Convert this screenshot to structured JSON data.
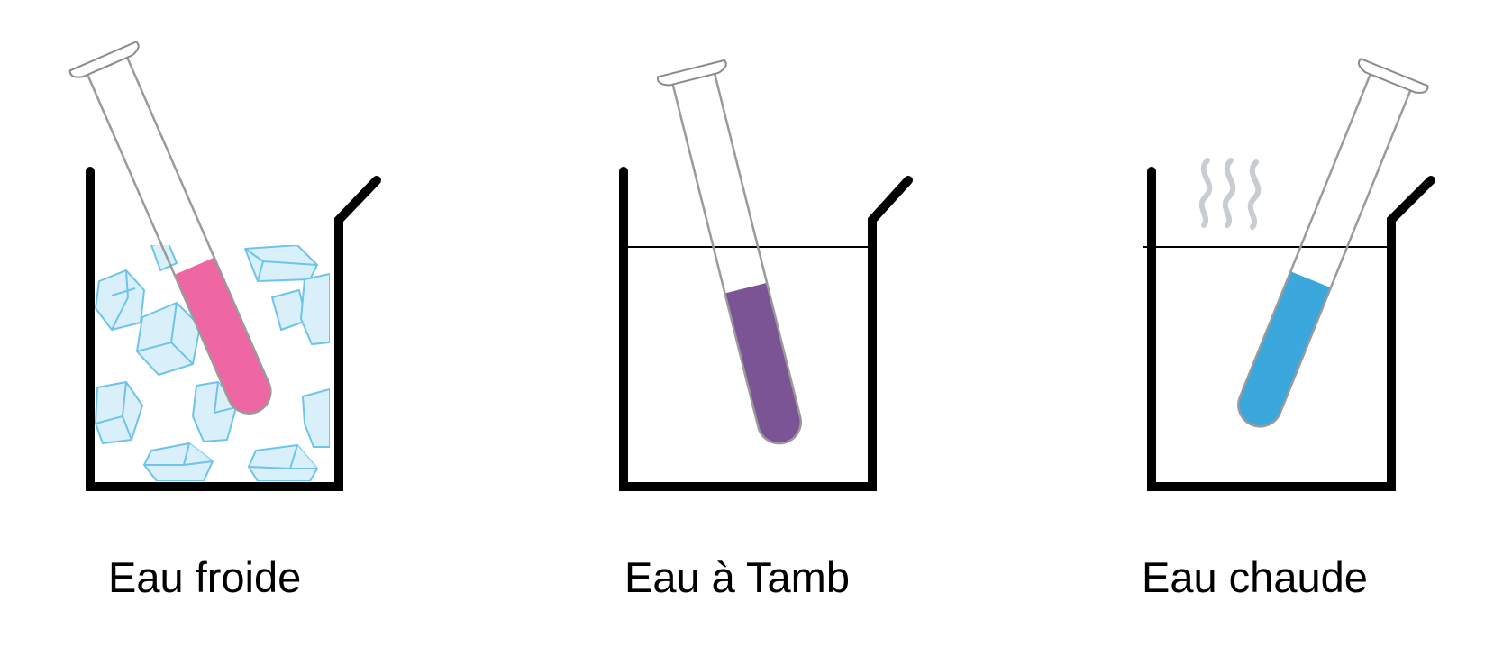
{
  "diagram": {
    "beakers": [
      {
        "label": "Eau froide",
        "condition": "cold water with ice cubes",
        "solution_color": "#EE67A2",
        "tube_icon": "test-tube-icon",
        "decoration_icon": "ice-cubes-icon"
      },
      {
        "label": "Eau à Tamb",
        "condition": "room temperature water",
        "solution_color": "#7B5496",
        "tube_icon": "test-tube-icon"
      },
      {
        "label": "Eau chaude",
        "condition": "hot water with steam",
        "solution_color": "#3AA8DC",
        "tube_icon": "test-tube-icon",
        "decoration_icon": "steam-icon"
      }
    ],
    "colors": {
      "beaker_outline": "#000000",
      "glass_outline": "#9a9a9a",
      "ice": "#6EC3EA",
      "steam": "#C8CDD2"
    }
  }
}
